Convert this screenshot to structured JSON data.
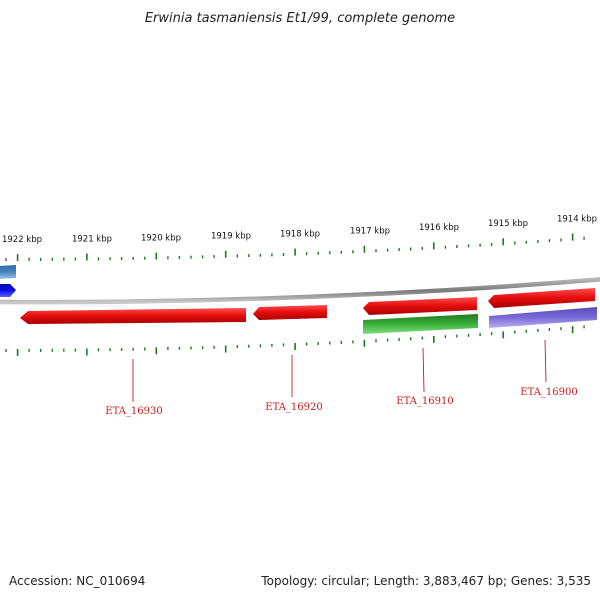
{
  "title": "Erwinia tasmaniensis Et1/99, complete genome",
  "colors": {
    "backbone": "#8c8c8c",
    "tick": "#1e7a1e",
    "gene_forward": "#e21010",
    "gene_reverse_green": "#2a9a2a",
    "gene_reverse_purple": "#7a6ad8",
    "edge_steelblue": "#4a84bf",
    "edge_blue": "#0a10e8",
    "label": "#d01818"
  },
  "ticks": [
    {
      "label": "1922 kbp"
    },
    {
      "label": "1921 kbp"
    },
    {
      "label": "1920 kbp"
    },
    {
      "label": "1919 kbp"
    },
    {
      "label": "1918 kbp"
    },
    {
      "label": "1917 kbp"
    },
    {
      "label": "1916 kbp"
    },
    {
      "label": "1915 kbp"
    },
    {
      "label": "1914 kbp"
    }
  ],
  "genes": [
    {
      "label": "ETA_16930"
    },
    {
      "label": "ETA_16920"
    },
    {
      "label": "ETA_16910"
    },
    {
      "label": "ETA_16900"
    }
  ],
  "footer": {
    "accession": "Accession: NC_010694",
    "summary": "Topology: circular; Length: 3,883,467 bp; Genes: 3,535"
  }
}
